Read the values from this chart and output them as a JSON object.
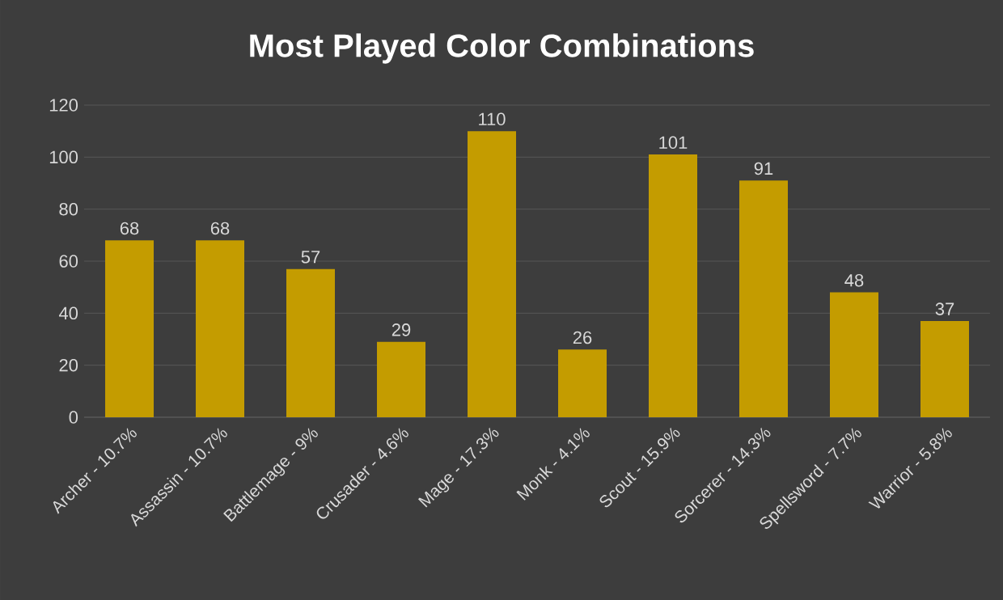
{
  "chart_data": {
    "type": "bar",
    "title": "Most Played Color Combinations",
    "categories": [
      "Archer - 10.7%",
      "Assassin - 10.7%",
      "Battlemage - 9%",
      "Crusader - 4.6%",
      "Mage - 17.3%",
      "Monk - 4.1%",
      "Scout - 15.9%",
      "Sorcerer - 14.3%",
      "Spellsword - 7.7%",
      "Warrior - 5.8%"
    ],
    "values": [
      68,
      68,
      57,
      29,
      110,
      26,
      101,
      91,
      48,
      37
    ],
    "color": "#c49c00",
    "ylim": [
      0,
      120
    ],
    "yticks": [
      0,
      20,
      40,
      60,
      80,
      100,
      120
    ],
    "grid": "y",
    "data_labels": true
  }
}
